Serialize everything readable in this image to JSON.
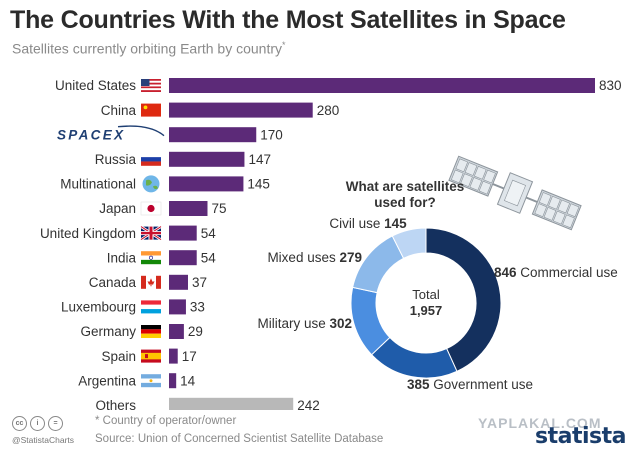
{
  "header": {
    "title": "The Countries With the Most Satellites in Space",
    "subtitle": "Satellites currently orbiting Earth by country",
    "subtitle_marker": "*"
  },
  "chart_data": [
    {
      "type": "bar",
      "orientation": "horizontal",
      "categories": [
        "United States",
        "China",
        "SPACEX",
        "Russia",
        "Multinational",
        "Japan",
        "United Kingdom",
        "India",
        "Canada",
        "Luxembourg",
        "Germany",
        "Spain",
        "Argentina",
        "Others"
      ],
      "values": [
        830,
        280,
        170,
        147,
        145,
        75,
        54,
        54,
        37,
        33,
        29,
        17,
        14,
        242
      ],
      "colors": {
        "bar": "#5c2a78",
        "others_bar": "#b8b8b8",
        "value_text": "#333333"
      },
      "flags": [
        "us",
        "cn",
        "spacex-logo",
        "ru",
        "globe",
        "jp",
        "uk",
        "in",
        "ca",
        "lu",
        "de",
        "es",
        "ar",
        "none"
      ]
    },
    {
      "type": "pie",
      "style": "donut",
      "title": "What are satellites used for?",
      "center_label": "Total",
      "center_value": "1,957",
      "slices": [
        {
          "value": 846,
          "label": "Commercial use",
          "value_text": "846",
          "color": "#14305e"
        },
        {
          "value": 385,
          "label": "Government use",
          "value_text": "385",
          "color": "#1f5caa"
        },
        {
          "value": 302,
          "label": "Military use",
          "value_text": "302",
          "color": "#4b8ee0"
        },
        {
          "value": 279,
          "label": "Mixed uses",
          "value_text": "279",
          "color": "#8cb9ea"
        },
        {
          "value": 145,
          "label": "Civil use",
          "value_text": "145",
          "color": "#bdd6f4"
        }
      ]
    }
  ],
  "footer": {
    "footnote": "* Country of operator/owner",
    "source": "Source: Union of Concerned Scientist Satellite Database",
    "handle": "@StatistaCharts",
    "logo": "statista",
    "watermark": "YAPLAKAL.COM"
  }
}
